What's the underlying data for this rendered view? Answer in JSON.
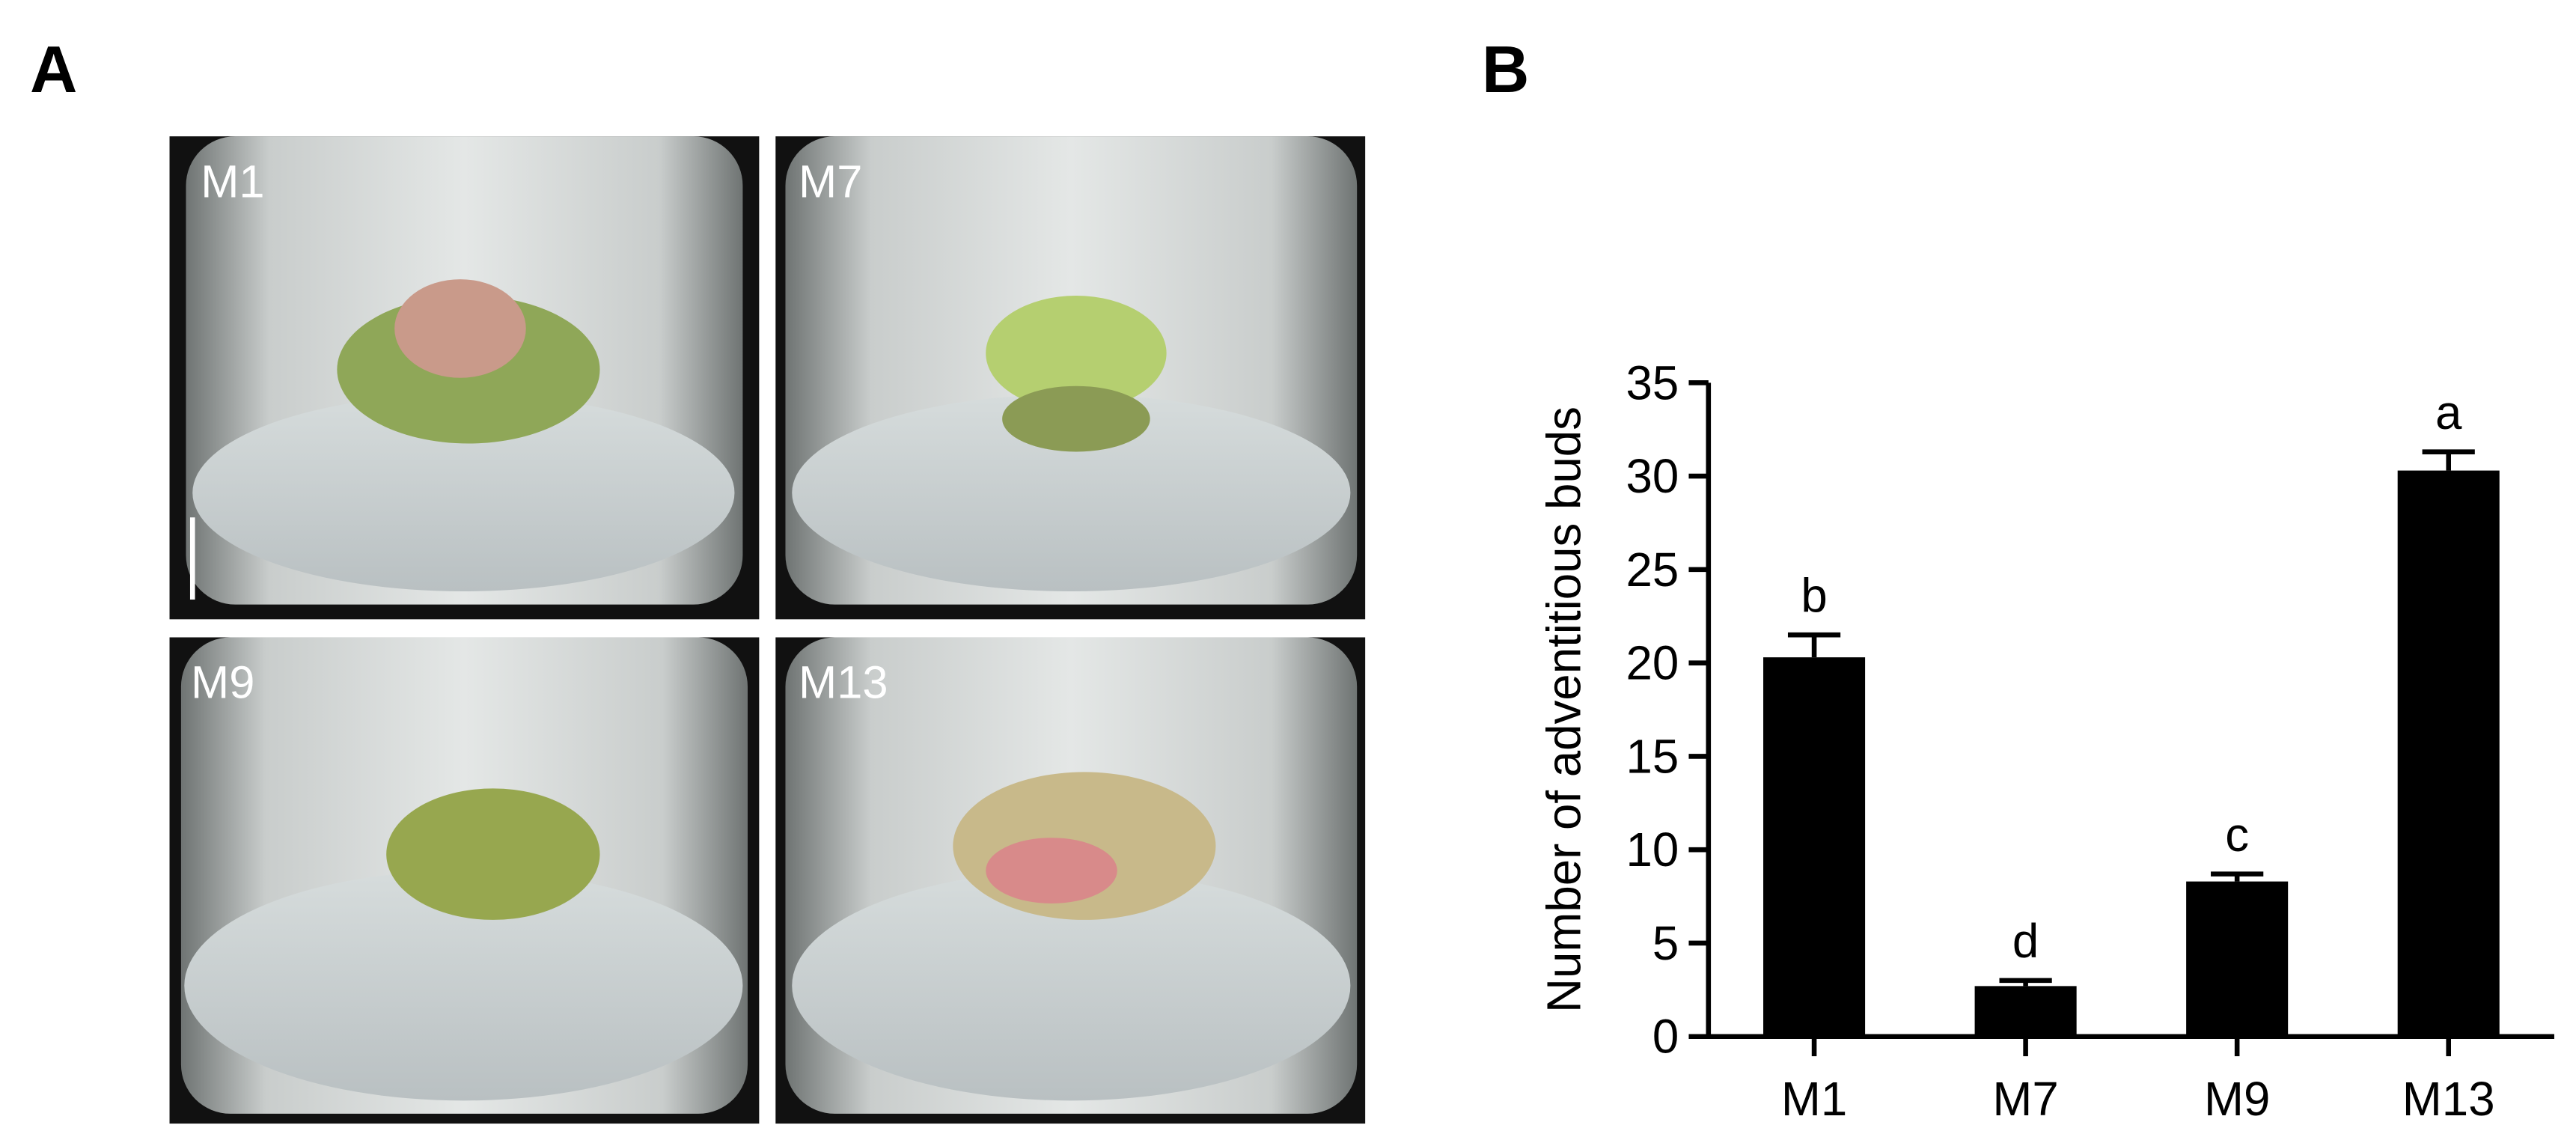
{
  "panel_labels": [
    "A",
    "B"
  ],
  "panel_a": {
    "images": [
      {
        "label": "M1"
      },
      {
        "label": "M7"
      },
      {
        "label": "M9"
      },
      {
        "label": "M13"
      }
    ]
  },
  "chart_data": {
    "type": "bar",
    "ylabel": "Number of adventitious buds",
    "categories": [
      "M1",
      "M7",
      "M9",
      "M13"
    ],
    "values": [
      20.3,
      2.7,
      8.3,
      30.3
    ],
    "errors": [
      1.2,
      0.3,
      0.4,
      1.0
    ],
    "annotations": [
      "b",
      "d",
      "c",
      "a"
    ],
    "color": "#000000",
    "ylim": [
      0,
      35
    ],
    "yticks": [
      0,
      5,
      10,
      15,
      20,
      25,
      30,
      35
    ]
  }
}
